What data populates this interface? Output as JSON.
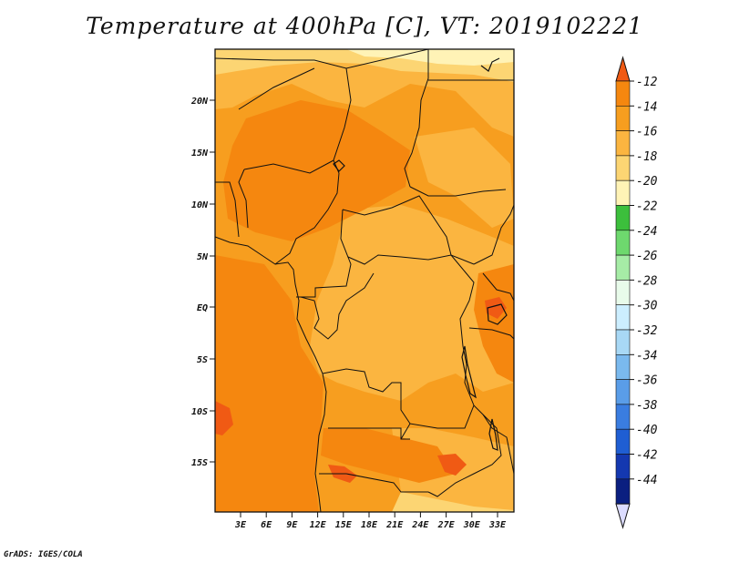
{
  "title": "Temperature at 400hPa [C], VT: 2019102221",
  "credit": "GrADS: IGES/COLA",
  "map": {
    "region": "Central and Southern-Central Africa",
    "latitude_labels": [
      "20N",
      "15N",
      "10N",
      "5N",
      "EQ",
      "5S",
      "10S",
      "15S"
    ],
    "longitude_labels": [
      "3E",
      "6E",
      "9E",
      "12E",
      "15E",
      "18E",
      "21E",
      "24E",
      "27E",
      "30E",
      "33E"
    ]
  },
  "colorbar": {
    "labels": [
      "-12",
      "-14",
      "-16",
      "-18",
      "-20",
      "-22",
      "-24",
      "-26",
      "-28",
      "-30",
      "-32",
      "-34",
      "-36",
      "-38",
      "-40",
      "-42",
      "-44"
    ],
    "colors": [
      "#f05a14",
      "#f5870f",
      "#f79e1f",
      "#fbb540",
      "#fcd573",
      "#fff3b6",
      "#3cbf3c",
      "#6ed86e",
      "#a6eca6",
      "#e8fbea",
      "#cceeff",
      "#a8d8f5",
      "#7ab9ee",
      "#5a9de8",
      "#3a7de0",
      "#1f5ed3",
      "#1438b0",
      "#0a1f80",
      "#dcdcff"
    ]
  },
  "field_colors": {
    "t14": "#f5870f",
    "t16": "#f79e1f",
    "t18": "#fbb540",
    "t20": "#fcd573",
    "t22": "#fff3b6"
  }
}
